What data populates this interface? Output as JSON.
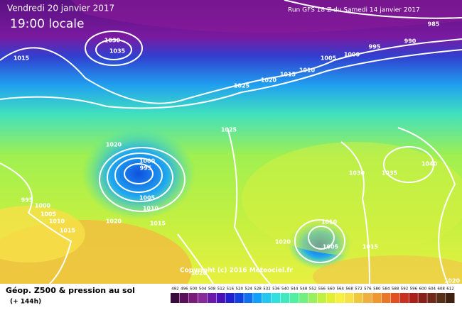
{
  "header": {
    "date": "Vendredi 20 janvier 2017",
    "time": "19:00 locale",
    "run": "Run GFS 18 Z du Samedi 14 janvier 2017"
  },
  "isobar_labels": [
    "1030",
    "1035",
    "1015",
    "1025",
    "1020",
    "1015",
    "1010",
    "1005",
    "1000",
    "995",
    "990",
    "985",
    "1025",
    "1020",
    "1000",
    "995",
    "1005",
    "1010",
    "1015",
    "1020",
    "995",
    "1000",
    "1005",
    "1010",
    "1015",
    "1030",
    "1035",
    "1040",
    "1010",
    "1005",
    "1020",
    "1015",
    "1020",
    "1020"
  ],
  "copyright": "Copyright (c) 2016 Meteociel.fr",
  "footer": {
    "title": "Géop. Z500 & pression au sol",
    "subtitle": "(+ 144h)"
  },
  "scale": {
    "values": [
      492,
      496,
      500,
      504,
      508,
      512,
      516,
      520,
      524,
      528,
      532,
      536,
      540,
      544,
      548,
      552,
      556,
      560,
      564,
      568,
      572,
      576,
      580,
      584,
      588,
      592,
      596,
      600,
      604,
      608,
      612
    ],
    "colors": [
      "#3a0a3a",
      "#5a0f5a",
      "#7a1a7a",
      "#8a2a9a",
      "#6a1aa8",
      "#4a10b8",
      "#2020d0",
      "#1040e0",
      "#1070f0",
      "#10a0f8",
      "#20c8f0",
      "#30e0e0",
      "#40e8c0",
      "#50f0a0",
      "#70f080",
      "#98f060",
      "#c0f040",
      "#e0f030",
      "#f8f040",
      "#f8e048",
      "#f0c840",
      "#f0b040",
      "#f09830",
      "#e87828",
      "#e05020",
      "#c83020",
      "#a82018",
      "#882018",
      "#702818",
      "#583018",
      "#402010"
    ]
  }
}
